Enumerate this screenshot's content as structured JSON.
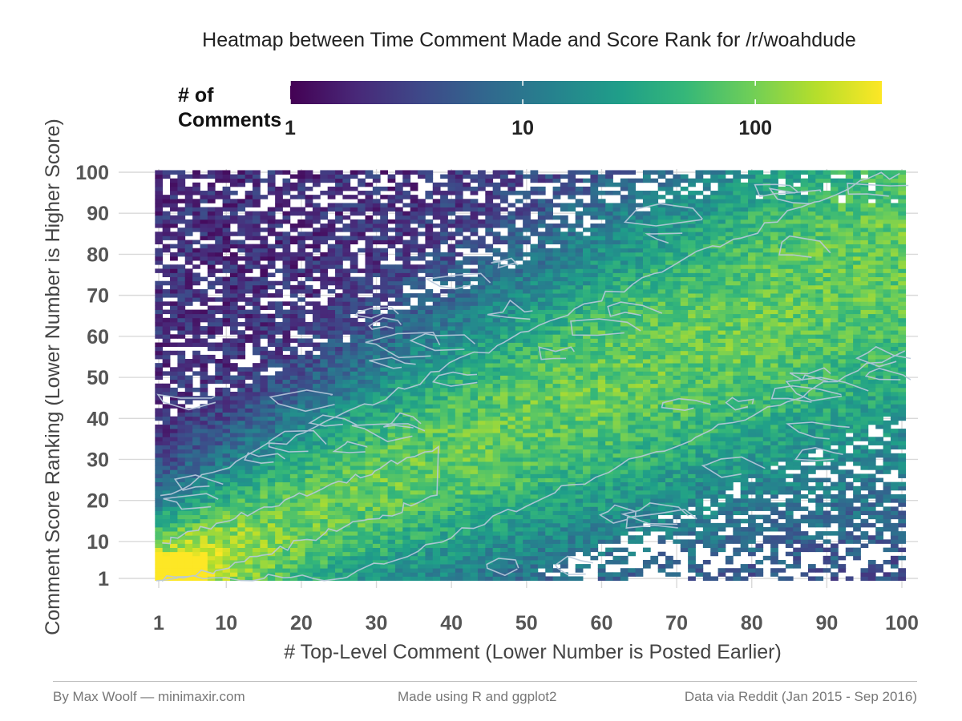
{
  "chart_data": {
    "type": "heatmap",
    "title": "Heatmap between Time Comment Made and Score Rank for /r/woahdude",
    "xlabel": "# Top-Level Comment (Lower Number is Posted Earlier)",
    "ylabel": "Comment Score Ranking (Lower Number is Higher Score)",
    "x_ticks": [
      "1",
      "10",
      "20",
      "30",
      "40",
      "50",
      "60",
      "70",
      "80",
      "90",
      "100"
    ],
    "y_ticks": [
      "1",
      "10",
      "20",
      "30",
      "40",
      "50",
      "60",
      "70",
      "80",
      "90",
      "100"
    ],
    "xlim": [
      1,
      100
    ],
    "ylim": [
      1,
      100
    ],
    "legend": {
      "title_lines": [
        "# of",
        "Comments"
      ],
      "scale": "log10",
      "ticks": [
        "1",
        "10",
        "100"
      ],
      "range": [
        1,
        350
      ],
      "placement": "top"
    },
    "colormap": "viridis",
    "colors": [
      "#440154",
      "#482878",
      "#3e4989",
      "#31688e",
      "#26828e",
      "#1f9e89",
      "#35b779",
      "#6ece58",
      "#b5de2b",
      "#fde725"
    ],
    "contour_color": "#b9c9dc",
    "grid": true
  },
  "footer": {
    "left": "By Max Woolf — minimaxir.com",
    "center": "Made using R and ggplot2",
    "right": "Data via Reddit (Jan 2015 - Sep 2016)"
  }
}
